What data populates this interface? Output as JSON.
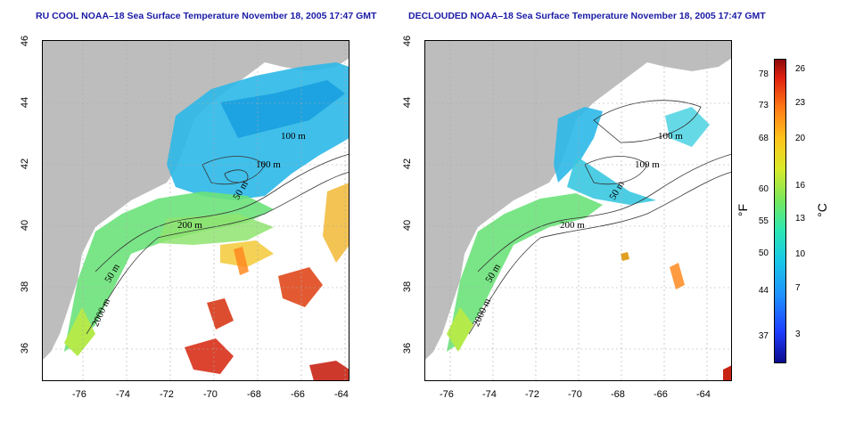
{
  "panels": [
    {
      "title": "RU COOL NOAA–18 Sea Surface Temperature November 18, 2005 17:47 GMT",
      "contours": [
        "100 m",
        "100 m",
        "50 m",
        "200 m",
        "50 m",
        "2000 m"
      ]
    },
    {
      "title": "DECLOUDED NOAA–18 Sea Surface Temperature November 18, 2005 17:47 GMT",
      "contours": [
        "100 m",
        "100 m",
        "50 m",
        "200 m",
        "50 m",
        "2000 m"
      ]
    }
  ],
  "axes": {
    "x_ticks": [
      "-76",
      "-74",
      "-72",
      "-70",
      "-68",
      "-66",
      "-64"
    ],
    "y_ticks": [
      "46",
      "44",
      "42",
      "40",
      "38",
      "36"
    ]
  },
  "colorbar": {
    "fahrenheit_label": "°F",
    "celsius_label": "°C",
    "fahrenheit_ticks": [
      "78",
      "73",
      "68",
      "60",
      "55",
      "50",
      "44",
      "37"
    ],
    "celsius_ticks": [
      "26",
      "23",
      "20",
      "16",
      "13",
      "10",
      "7",
      "3"
    ]
  },
  "colors": {
    "land": "#bdbdbd",
    "title": "#1a1aa6"
  }
}
